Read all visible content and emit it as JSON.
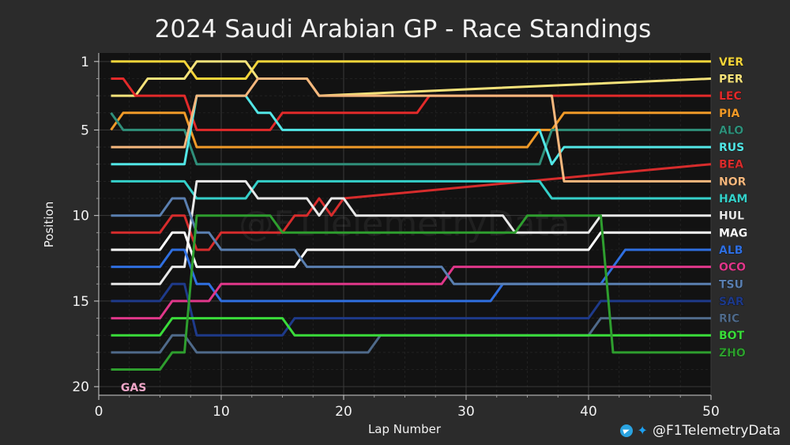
{
  "chart_data": {
    "type": "line",
    "title": "2024 Saudi Arabian GP - Race Standings",
    "xlabel": "Lap Number",
    "ylabel": "Position",
    "xlim": [
      0,
      50
    ],
    "ylim": [
      20.5,
      0.5
    ],
    "x_ticks": [
      0,
      10,
      20,
      30,
      40,
      50
    ],
    "y_ticks": [
      1,
      5,
      10,
      15,
      20
    ],
    "grid": true,
    "watermark": "@F1TelemetryData",
    "series": [
      {
        "name": "VER",
        "color": "#f3d43a",
        "points": [
          [
            1,
            1
          ],
          [
            7,
            1
          ],
          [
            8,
            2
          ],
          [
            12,
            2
          ],
          [
            13,
            1
          ],
          [
            50,
            1
          ]
        ]
      },
      {
        "name": "PER",
        "color": "#f5e27a",
        "points": [
          [
            1,
            3
          ],
          [
            3,
            3
          ],
          [
            4,
            2
          ],
          [
            7,
            2
          ],
          [
            8,
            1
          ],
          [
            12,
            1
          ],
          [
            13,
            2
          ],
          [
            17,
            2
          ],
          [
            18,
            3
          ],
          [
            50,
            2
          ]
        ]
      },
      {
        "name": "LEC",
        "color": "#e22a2a",
        "points": [
          [
            1,
            2
          ],
          [
            2,
            2
          ],
          [
            3,
            3
          ],
          [
            7,
            3
          ],
          [
            8,
            5
          ],
          [
            14,
            5
          ],
          [
            15,
            4
          ],
          [
            26,
            4
          ],
          [
            27,
            3
          ],
          [
            50,
            3
          ]
        ]
      },
      {
        "name": "PIA",
        "color": "#f09a28",
        "points": [
          [
            1,
            5
          ],
          [
            2,
            4
          ],
          [
            7,
            4
          ],
          [
            8,
            6
          ],
          [
            35,
            6
          ],
          [
            36,
            5
          ],
          [
            37,
            5
          ],
          [
            38,
            4
          ],
          [
            50,
            4
          ]
        ]
      },
      {
        "name": "ALO",
        "color": "#2f8f7a",
        "points": [
          [
            1,
            4
          ],
          [
            2,
            5
          ],
          [
            6,
            5
          ],
          [
            7,
            5
          ],
          [
            8,
            7
          ],
          [
            36,
            7
          ],
          [
            37,
            5
          ],
          [
            50,
            5
          ]
        ]
      },
      {
        "name": "RUS",
        "color": "#52e6e6",
        "points": [
          [
            1,
            7
          ],
          [
            7,
            7
          ],
          [
            8,
            3
          ],
          [
            12,
            3
          ],
          [
            13,
            4
          ],
          [
            14,
            4
          ],
          [
            15,
            5
          ],
          [
            36,
            5
          ],
          [
            37,
            7
          ],
          [
            38,
            6
          ],
          [
            50,
            6
          ]
        ]
      },
      {
        "name": "BEA",
        "color": "#d72c2c",
        "points": [
          [
            1,
            11
          ],
          [
            5,
            11
          ],
          [
            6,
            10
          ],
          [
            7,
            10
          ],
          [
            8,
            12
          ],
          [
            9,
            12
          ],
          [
            10,
            11
          ],
          [
            15,
            11
          ],
          [
            16,
            10
          ],
          [
            17,
            10
          ],
          [
            18,
            9
          ],
          [
            19,
            10
          ],
          [
            20,
            9
          ],
          [
            50,
            7
          ]
        ]
      },
      {
        "name": "NOR",
        "color": "#f5b77d",
        "points": [
          [
            1,
            6
          ],
          [
            7,
            6
          ],
          [
            8,
            3
          ],
          [
            12,
            3
          ],
          [
            13,
            2
          ],
          [
            17,
            2
          ],
          [
            18,
            3
          ],
          [
            37,
            3
          ],
          [
            38,
            8
          ],
          [
            50,
            8
          ]
        ]
      },
      {
        "name": "HAM",
        "color": "#35d0c9",
        "points": [
          [
            1,
            8
          ],
          [
            6,
            8
          ],
          [
            7,
            8
          ],
          [
            8,
            9
          ],
          [
            12,
            9
          ],
          [
            13,
            8
          ],
          [
            36,
            8
          ],
          [
            37,
            9
          ],
          [
            50,
            9
          ]
        ]
      },
      {
        "name": "HUL",
        "color": "#e8e8e8",
        "points": [
          [
            1,
            14
          ],
          [
            5,
            14
          ],
          [
            6,
            13
          ],
          [
            7,
            13
          ],
          [
            8,
            8
          ],
          [
            12,
            8
          ],
          [
            13,
            9
          ],
          [
            17,
            9
          ],
          [
            18,
            10
          ],
          [
            19,
            9
          ],
          [
            20,
            9
          ],
          [
            21,
            10
          ],
          [
            33,
            10
          ],
          [
            34,
            11
          ],
          [
            40,
            11
          ],
          [
            41,
            10
          ],
          [
            50,
            10
          ]
        ]
      },
      {
        "name": "MAG",
        "color": "#ffffff",
        "points": [
          [
            1,
            12
          ],
          [
            5,
            12
          ],
          [
            6,
            11
          ],
          [
            7,
            11
          ],
          [
            8,
            13
          ],
          [
            16,
            13
          ],
          [
            17,
            12
          ],
          [
            40,
            12
          ],
          [
            41,
            11
          ],
          [
            50,
            11
          ]
        ]
      },
      {
        "name": "ALB",
        "color": "#2f6fe0",
        "points": [
          [
            1,
            13
          ],
          [
            5,
            13
          ],
          [
            6,
            12
          ],
          [
            7,
            12
          ],
          [
            8,
            14
          ],
          [
            9,
            14
          ],
          [
            10,
            15
          ],
          [
            32,
            15
          ],
          [
            33,
            14
          ],
          [
            41,
            14
          ],
          [
            42,
            13
          ],
          [
            43,
            12
          ],
          [
            50,
            12
          ]
        ]
      },
      {
        "name": "OCO",
        "color": "#e0378a",
        "points": [
          [
            1,
            16
          ],
          [
            5,
            16
          ],
          [
            6,
            15
          ],
          [
            9,
            15
          ],
          [
            10,
            14
          ],
          [
            28,
            14
          ],
          [
            29,
            13
          ],
          [
            42,
            13
          ],
          [
            43,
            13
          ],
          [
            44,
            13
          ],
          [
            50,
            13
          ]
        ]
      },
      {
        "name": "TSU",
        "color": "#5a7fb0",
        "points": [
          [
            1,
            10
          ],
          [
            5,
            10
          ],
          [
            6,
            9
          ],
          [
            7,
            9
          ],
          [
            8,
            11
          ],
          [
            9,
            11
          ],
          [
            10,
            12
          ],
          [
            16,
            12
          ],
          [
            17,
            13
          ],
          [
            28,
            13
          ],
          [
            29,
            14
          ],
          [
            41,
            14
          ],
          [
            42,
            14
          ],
          [
            50,
            14
          ]
        ]
      },
      {
        "name": "SAR",
        "color": "#1e3a8a",
        "points": [
          [
            1,
            15
          ],
          [
            5,
            15
          ],
          [
            6,
            14
          ],
          [
            7,
            14
          ],
          [
            8,
            17
          ],
          [
            15,
            17
          ],
          [
            16,
            16
          ],
          [
            40,
            16
          ],
          [
            41,
            15
          ],
          [
            50,
            15
          ]
        ]
      },
      {
        "name": "RIC",
        "color": "#4f6a8a",
        "points": [
          [
            1,
            18
          ],
          [
            5,
            18
          ],
          [
            6,
            17
          ],
          [
            7,
            17
          ],
          [
            8,
            18
          ],
          [
            22,
            18
          ],
          [
            23,
            17
          ],
          [
            40,
            17
          ],
          [
            41,
            16
          ],
          [
            50,
            16
          ]
        ]
      },
      {
        "name": "BOT",
        "color": "#3adc3a",
        "points": [
          [
            1,
            17
          ],
          [
            5,
            17
          ],
          [
            6,
            16
          ],
          [
            15,
            16
          ],
          [
            16,
            17
          ],
          [
            40,
            17
          ],
          [
            41,
            17
          ],
          [
            50,
            17
          ]
        ]
      },
      {
        "name": "ZHO",
        "color": "#2e9e2e",
        "points": [
          [
            1,
            19
          ],
          [
            5,
            19
          ],
          [
            6,
            18
          ],
          [
            7,
            18
          ],
          [
            8,
            10
          ],
          [
            14,
            10
          ],
          [
            15,
            11
          ],
          [
            34,
            11
          ],
          [
            35,
            10
          ],
          [
            41,
            10
          ],
          [
            42,
            18
          ],
          [
            50,
            18
          ]
        ]
      },
      {
        "name": "GAS",
        "color": "#f0a6c8",
        "points": []
      }
    ],
    "label_lap_positions": [
      {
        "name": "VER",
        "pos": 1
      },
      {
        "name": "PER",
        "pos": 2
      },
      {
        "name": "LEC",
        "pos": 3
      },
      {
        "name": "PIA",
        "pos": 4
      },
      {
        "name": "ALO",
        "pos": 5
      },
      {
        "name": "RUS",
        "pos": 6
      },
      {
        "name": "BEA",
        "pos": 7
      },
      {
        "name": "NOR",
        "pos": 8
      },
      {
        "name": "HAM",
        "pos": 9
      },
      {
        "name": "HUL",
        "pos": 10
      },
      {
        "name": "MAG",
        "pos": 11
      },
      {
        "name": "ALB",
        "pos": 12
      },
      {
        "name": "OCO",
        "pos": 13
      },
      {
        "name": "TSU",
        "pos": 14
      },
      {
        "name": "SAR",
        "pos": 15
      },
      {
        "name": "RIC",
        "pos": 16
      },
      {
        "name": "BOT",
        "pos": 17
      },
      {
        "name": "ZHO",
        "pos": 18
      }
    ],
    "left_labels": [
      {
        "name": "GAS",
        "pos": 20
      }
    ]
  }
}
